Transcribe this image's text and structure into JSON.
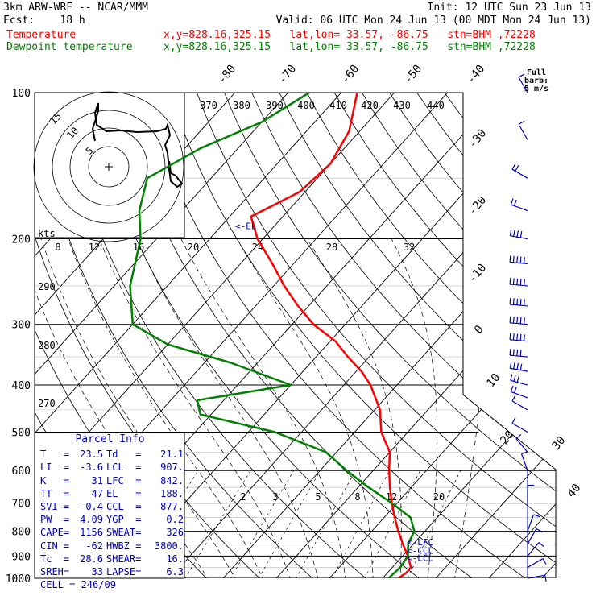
{
  "header": {
    "model": "3km ARW-WRF -- NCAR/MMM",
    "init": "Init: 12 UTC Sun 23 Jun 13",
    "fcst": "Fcst:    18 h",
    "valid": "Valid: 06 UTC Mon 24 Jun 13 (00 MDT Mon 24 Jun 13)",
    "temp_label": "Temperature",
    "dew_label": "Dewpoint temperature",
    "loc_text": "x,y=828.16,325.15   lat,lon= 33.57, -86.75   stn=BHM ,72228"
  },
  "colors": {
    "temperature": "#ff0000",
    "dewpoint": "#008000",
    "parcel_box": "#0000c0",
    "wind": "#0000c0"
  },
  "wind_legend": {
    "title": "Full barb:",
    "value": "5 m/s"
  },
  "hodograph": {
    "units": "kts",
    "rings": [
      "5",
      "10",
      "15"
    ]
  },
  "parcel_info": {
    "title": "Parcel Info",
    "rows": [
      {
        "k1": "T",
        "v1": "23.5",
        "k2": "Td",
        "v2": "21.1"
      },
      {
        "k1": "LI",
        "v1": "-3.6",
        "k2": "LCL",
        "v2": "907."
      },
      {
        "k1": "K",
        "v1": "31",
        "k2": "LFC",
        "v2": "842."
      },
      {
        "k1": "TT",
        "v1": "47",
        "k2": "EL",
        "v2": "188."
      },
      {
        "k1": "SVI",
        "v1": "-0.4",
        "k2": "CCL",
        "v2": "877."
      },
      {
        "k1": "PW",
        "v1": "4.09",
        "k2": "YGP",
        "v2": "0.2"
      },
      {
        "k1": "CAPE",
        "v1": "1156",
        "k2": "SWEAT",
        "v2": "326"
      },
      {
        "k1": "CIN",
        "v1": "-62",
        "k2": "HWBZ",
        "v2": "3800."
      },
      {
        "k1": "Tc",
        "v1": "28.6",
        "k2": "SHEAR",
        "v2": "16."
      },
      {
        "k1": "SREH",
        "v1": "33",
        "k2": "LAPSE",
        "v2": "6.3"
      }
    ],
    "cell": "CELL = 246/09"
  },
  "chart_data": {
    "type": "line",
    "title": "",
    "pressure_levels": [
      100,
      200,
      300,
      400,
      500,
      600,
      700,
      800,
      900,
      1000
    ],
    "isotherm_labels": [
      "-80",
      "-70",
      "-60",
      "-50",
      "-40",
      "-30",
      "-20",
      "-10",
      "0",
      "10",
      "20",
      "30",
      "40"
    ],
    "theta_e_labels": [
      "370",
      "380",
      "390",
      "400",
      "410",
      "420",
      "430",
      "440"
    ],
    "dry_adiabat_labels": [
      "290",
      "280",
      "270"
    ],
    "mixing_ratio_labels": [
      "8",
      "12",
      "16",
      "20",
      "24",
      "28",
      "32"
    ],
    "mixing_ratio_labels_low": [
      "2",
      "3",
      "5",
      "8",
      "12",
      "20"
    ],
    "level_markers": [
      {
        "label": "EL",
        "pressure": 188
      },
      {
        "label": "LFC",
        "pressure": 842
      },
      {
        "label": "CCL",
        "pressure": 877
      },
      {
        "label": "LCL",
        "pressure": 907
      }
    ],
    "series": [
      {
        "name": "Temperature",
        "points": [
          [
            100,
            -67
          ],
          [
            120,
            -62
          ],
          [
            140,
            -60
          ],
          [
            160,
            -61
          ],
          [
            180,
            -66
          ],
          [
            200,
            -61
          ],
          [
            225,
            -54
          ],
          [
            250,
            -48
          ],
          [
            275,
            -42
          ],
          [
            300,
            -36
          ],
          [
            325,
            -29
          ],
          [
            350,
            -24
          ],
          [
            375,
            -19
          ],
          [
            400,
            -15
          ],
          [
            450,
            -9
          ],
          [
            500,
            -5
          ],
          [
            550,
            0
          ],
          [
            600,
            3
          ],
          [
            650,
            6
          ],
          [
            700,
            9
          ],
          [
            750,
            12
          ],
          [
            800,
            15
          ],
          [
            850,
            18
          ],
          [
            900,
            21
          ],
          [
            950,
            23.5
          ],
          [
            975,
            23.5
          ],
          [
            1000,
            23
          ]
        ]
      },
      {
        "name": "Dewpoint temperature",
        "points": [
          [
            100,
            -76
          ],
          [
            115,
            -80
          ],
          [
            130,
            -87
          ],
          [
            150,
            -92
          ],
          [
            175,
            -88
          ],
          [
            200,
            -83
          ],
          [
            250,
            -77
          ],
          [
            300,
            -70
          ],
          [
            330,
            -60
          ],
          [
            360,
            -45
          ],
          [
            400,
            -30
          ],
          [
            430,
            -45
          ],
          [
            460,
            -42
          ],
          [
            500,
            -25
          ],
          [
            550,
            -12
          ],
          [
            600,
            -5
          ],
          [
            650,
            2
          ],
          [
            700,
            9
          ],
          [
            750,
            15
          ],
          [
            800,
            18
          ],
          [
            850,
            19
          ],
          [
            900,
            21
          ],
          [
            950,
            21.5
          ],
          [
            1000,
            21.1
          ]
        ]
      }
    ],
    "wind_barbs": [
      {
        "p": 100,
        "speed": 5,
        "dir": 330
      },
      {
        "p": 125,
        "speed": 5,
        "dir": 330
      },
      {
        "p": 150,
        "speed": 10,
        "dir": 300
      },
      {
        "p": 175,
        "speed": 10,
        "dir": 290
      },
      {
        "p": 200,
        "speed": 20,
        "dir": 280
      },
      {
        "p": 225,
        "speed": 25,
        "dir": 275
      },
      {
        "p": 250,
        "speed": 25,
        "dir": 275
      },
      {
        "p": 275,
        "speed": 25,
        "dir": 275
      },
      {
        "p": 300,
        "speed": 25,
        "dir": 275
      },
      {
        "p": 325,
        "speed": 25,
        "dir": 275
      },
      {
        "p": 350,
        "speed": 20,
        "dir": 275
      },
      {
        "p": 375,
        "speed": 20,
        "dir": 280
      },
      {
        "p": 400,
        "speed": 15,
        "dir": 285
      },
      {
        "p": 425,
        "speed": 10,
        "dir": 290
      },
      {
        "p": 450,
        "speed": 5,
        "dir": 300
      },
      {
        "p": 500,
        "speed": 5,
        "dir": 300
      },
      {
        "p": 550,
        "speed": 5,
        "dir": 320
      },
      {
        "p": 600,
        "speed": 5,
        "dir": 340
      },
      {
        "p": 700,
        "speed": 5,
        "dir": 0
      },
      {
        "p": 800,
        "speed": 5,
        "dir": 20
      },
      {
        "p": 850,
        "speed": 5,
        "dir": 30
      },
      {
        "p": 900,
        "speed": 5,
        "dir": 40
      },
      {
        "p": 950,
        "speed": 5,
        "dir": 60
      },
      {
        "p": 1000,
        "speed": 5,
        "dir": 80
      }
    ]
  }
}
